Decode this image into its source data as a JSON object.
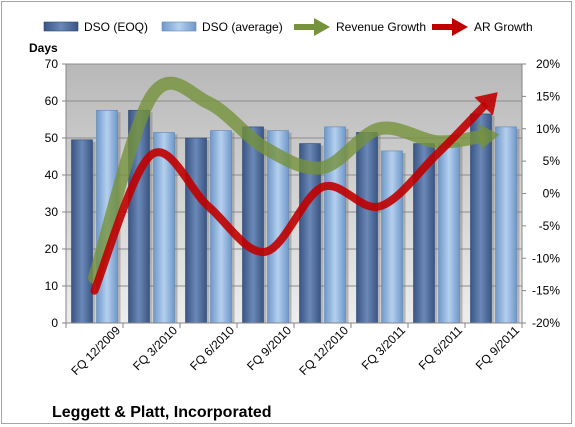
{
  "chart_data": {
    "type": "bar",
    "title": "Leggett & Platt, Incorporated",
    "ylabel": "Days",
    "ylim": [
      0,
      70
    ],
    "y_ticks": [
      "0",
      "10",
      "20",
      "30",
      "40",
      "50",
      "60",
      "70"
    ],
    "y2lim": [
      -20,
      20
    ],
    "y2_ticks": [
      "-20%",
      "-15%",
      "-10%",
      "-5%",
      "0%",
      "5%",
      "10%",
      "15%",
      "20%"
    ],
    "categories": [
      "FQ 12/2009",
      "FQ 3/2010",
      "FQ 6/2010",
      "FQ 9/2010",
      "FQ 12/2010",
      "FQ 3/2011",
      "FQ 6/2011",
      "FQ 9/2011"
    ],
    "grid": true,
    "legend_position": "top",
    "series": [
      {
        "name": "DSO (EOQ)",
        "type": "bar",
        "axis": "left",
        "color": "#4a6797",
        "values": [
          49.5,
          57.5,
          50,
          53,
          48.5,
          51.5,
          48.5,
          56.5
        ]
      },
      {
        "name": "DSO (average)",
        "type": "bar",
        "axis": "left",
        "color": "#8db4e2",
        "values": [
          57.5,
          51.5,
          52,
          52,
          53,
          46.5,
          48.5,
          53
        ]
      },
      {
        "name": "Revenue Growth",
        "type": "line",
        "axis": "right",
        "color": "#76923c",
        "values": [
          -13,
          15,
          14,
          7,
          4,
          10,
          8,
          9
        ]
      },
      {
        "name": "AR Growth",
        "type": "line",
        "axis": "right",
        "color": "#c00000",
        "values": [
          -15,
          6,
          -2,
          -9,
          1,
          -2,
          6,
          15
        ]
      }
    ]
  }
}
